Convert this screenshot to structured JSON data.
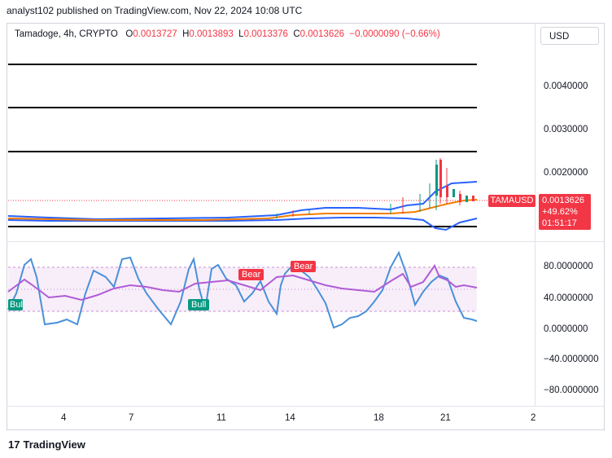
{
  "header": {
    "published": "analyst102 published on TradingView.com, Nov 22, 2024 10:08 UTC"
  },
  "legend": {
    "symbol": "Tamadoge, 4h, CRYPTO",
    "open_k": "O",
    "open": "0.0013727",
    "high_k": "H",
    "high": "0.0013893",
    "low_k": "L",
    "low": "0.0013376",
    "close_k": "C",
    "close": "0.0013626",
    "change": "−0.0000090 (−0.66%)"
  },
  "currency": "USD",
  "price_axis": [
    "0.0040000",
    "0.0030000",
    "0.0020000"
  ],
  "price_tag": {
    "symbol": "TAMAUSD",
    "price": "0.0013626",
    "pct": "+49.62%",
    "timer": "01:51:17"
  },
  "osc_axis": [
    "80.0000000",
    "40.0000000",
    "0.0000000",
    "−40.0000000",
    "−80.0000000"
  ],
  "x_axis": [
    "4",
    "7",
    "11",
    "14",
    "18",
    "21",
    "2"
  ],
  "badges": {
    "bear1": "Bear",
    "bear2": "Bear",
    "bull1": "Bull",
    "bull2": "Bull"
  },
  "footer": {
    "brand": "TradingView"
  },
  "colors": {
    "bear": "#f23645",
    "bull": "#089981",
    "blue": "#2962ff",
    "orange": "#f57c00",
    "purple": "#9c27b0",
    "stoch": "#4a90d9"
  }
}
